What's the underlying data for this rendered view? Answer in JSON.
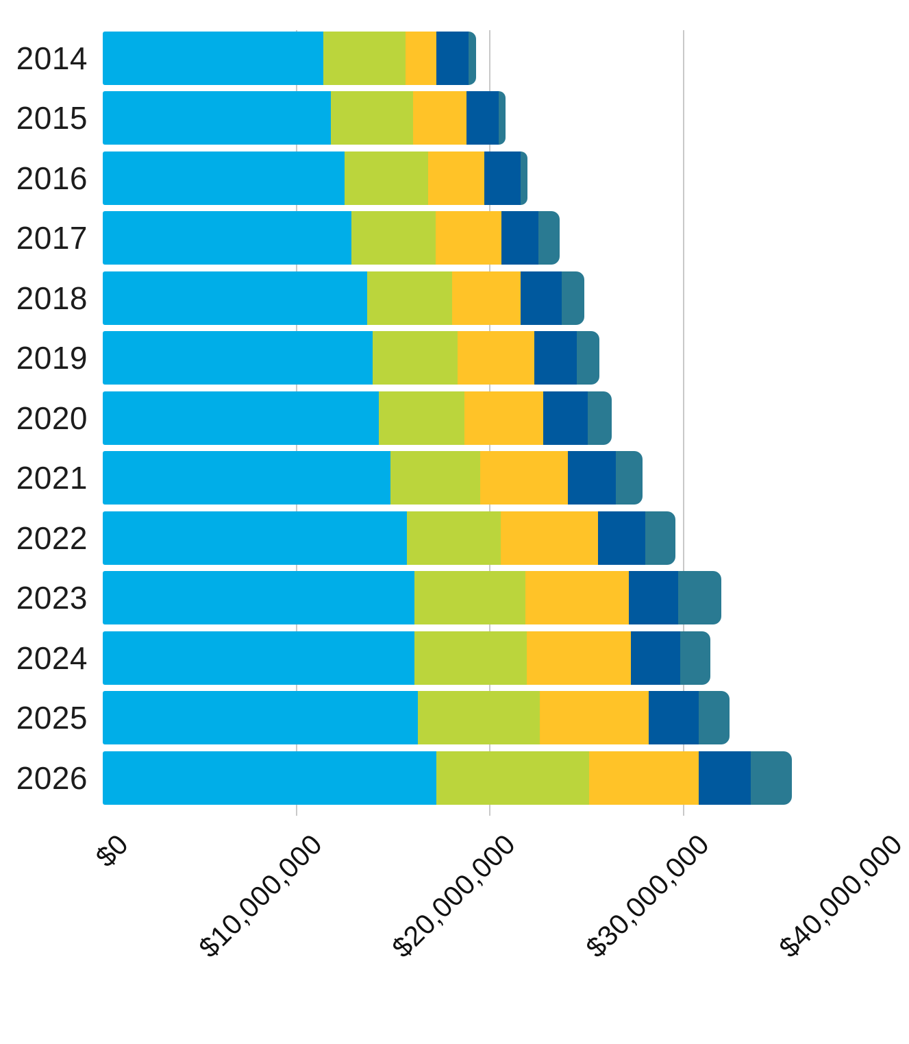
{
  "chart_data": {
    "type": "bar",
    "orientation": "horizontal",
    "stacked": true,
    "title": "",
    "xlabel": "",
    "ylabel": "",
    "grid": "vertical-gridlines-at-10M-steps",
    "legend_position": "none",
    "categories": [
      "2014",
      "2015",
      "2016",
      "2017",
      "2018",
      "2019",
      "2020",
      "2021",
      "2022",
      "2023",
      "2024",
      "2025",
      "2026"
    ],
    "x_axis": {
      "tick_labels": [
        "$0",
        "$10,000,000",
        "$20,000,000",
        "$30,000,000",
        "$40,000,000"
      ],
      "tick_values": [
        0,
        10000000,
        20000000,
        30000000,
        40000000
      ],
      "range": [
        0,
        40000000
      ],
      "last_label_clipped": true
    },
    "series": [
      {
        "name": "segment-1-light-blue",
        "color": "#00AEE8",
        "values": [
          11400000,
          11800000,
          12500000,
          12850000,
          13650000,
          13950000,
          14250000,
          14850000,
          15700000,
          16100000,
          16100000,
          16300000,
          17250000
        ]
      },
      {
        "name": "segment-2-green",
        "color": "#BBD53C",
        "values": [
          4250000,
          4250000,
          4300000,
          4350000,
          4400000,
          4400000,
          4450000,
          4650000,
          4850000,
          5750000,
          5800000,
          6300000,
          7900000
        ]
      },
      {
        "name": "segment-3-yellow",
        "color": "#FFC328",
        "values": [
          1600000,
          2750000,
          2900000,
          3400000,
          3550000,
          3950000,
          4050000,
          4550000,
          5050000,
          5350000,
          5400000,
          5600000,
          5650000
        ]
      },
      {
        "name": "segment-4-navy",
        "color": "#00599E",
        "values": [
          1650000,
          1650000,
          1900000,
          1900000,
          2100000,
          2200000,
          2300000,
          2450000,
          2450000,
          2550000,
          2550000,
          2600000,
          2700000
        ]
      },
      {
        "name": "segment-5-teal",
        "color": "#2A7A92",
        "values": [
          400000,
          350000,
          350000,
          1100000,
          1200000,
          1150000,
          1250000,
          1400000,
          1550000,
          2200000,
          1550000,
          1600000,
          2100000
        ]
      }
    ],
    "gridline_color": "#c9c9c9",
    "totals": [
      19300000,
      20800000,
      21950000,
      23600000,
      24900000,
      25650000,
      26300000,
      27900000,
      29600000,
      31950000,
      31400000,
      32400000,
      35600000
    ]
  }
}
